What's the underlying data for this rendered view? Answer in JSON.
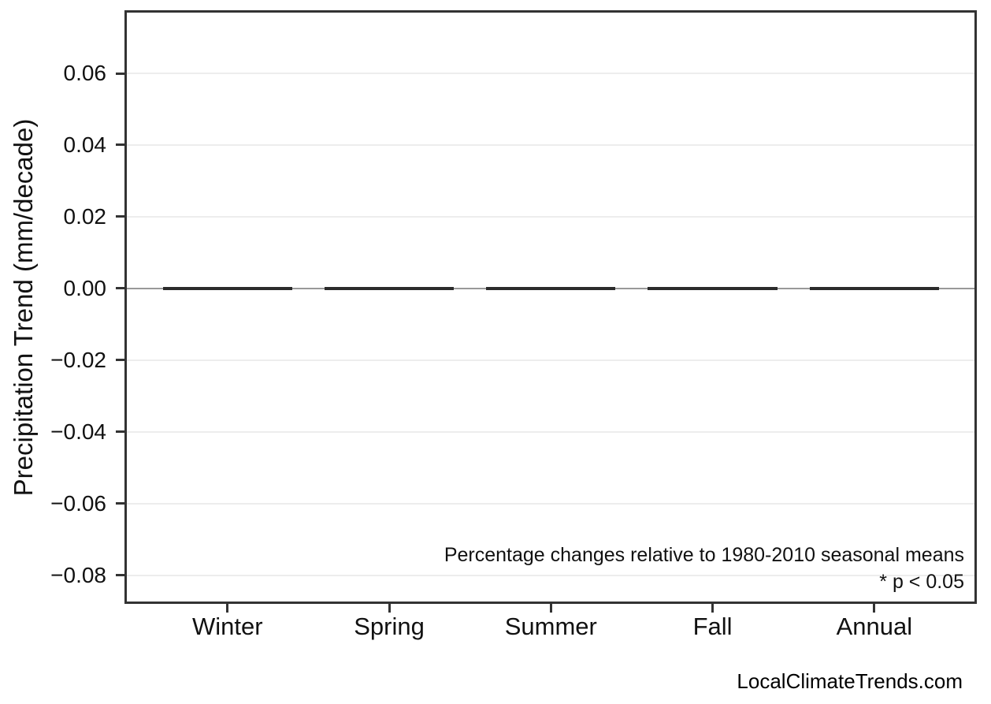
{
  "page": {
    "watermark": "LocalClimateTrends.com"
  },
  "chart_data": {
    "type": "bar",
    "categories": [
      "Winter",
      "Spring",
      "Summer",
      "Fall",
      "Annual"
    ],
    "values": [
      0.0,
      0.0,
      0.0,
      0.0,
      0.0
    ],
    "title": "",
    "xlabel": "",
    "ylabel": "Precipitation Trend (mm/decade)",
    "ylim": [
      -0.088,
      0.0776
    ],
    "xlim": [
      -0.637,
      4.634
    ],
    "bar_width": 0.8,
    "yticks": [
      0.06,
      0.04,
      0.02,
      0.0,
      -0.02,
      -0.04,
      -0.06,
      -0.08
    ],
    "ytick_labels": [
      "0.06",
      "0.04",
      "0.02",
      "0.00",
      "−0.02",
      "−0.04",
      "−0.06",
      "−0.08"
    ],
    "grid": true,
    "legend": false,
    "annotations": [
      "Percentage changes relative to 1980-2010 seasonal means",
      "* p < 0.05"
    ],
    "colors": {
      "bar": "#2b2b2b",
      "zero_line": "#999999",
      "gridline": "#ededed",
      "spine": "#333333"
    }
  }
}
